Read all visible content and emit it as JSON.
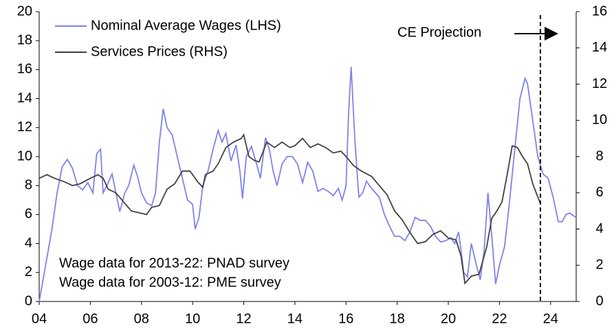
{
  "chart_data": {
    "type": "line",
    "legend": "top-left",
    "annotations": [
      "Wage data for 2013-22: PNAD survey",
      "Wage data for 2003-12: PME survey"
    ],
    "projection": {
      "label": "CE Projection",
      "x": 2023.6
    },
    "xlim": [
      2004,
      2025
    ],
    "xticks": [
      {
        "value": 2004,
        "label": "04"
      },
      {
        "value": 2006,
        "label": "06"
      },
      {
        "value": 2008,
        "label": "08"
      },
      {
        "value": 2010,
        "label": "10"
      },
      {
        "value": 2012,
        "label": "12"
      },
      {
        "value": 2014,
        "label": "14"
      },
      {
        "value": 2016,
        "label": "16"
      },
      {
        "value": 2018,
        "label": "18"
      },
      {
        "value": 2020,
        "label": "20"
      },
      {
        "value": 2022,
        "label": "22"
      },
      {
        "value": 2024,
        "label": "24"
      }
    ],
    "ylim": [
      0,
      20
    ],
    "yticks": [
      0,
      2,
      4,
      6,
      8,
      10,
      12,
      14,
      16,
      18,
      20
    ],
    "y2lim": [
      0,
      16
    ],
    "y2ticks": [
      0,
      2,
      4,
      6,
      8,
      10,
      12,
      14,
      16
    ],
    "series": [
      {
        "name": "Nominal Average Wages (LHS)",
        "color": "#7f82ea",
        "x": [
          2004.0,
          2004.15,
          2004.3,
          2004.5,
          2004.7,
          2004.9,
          2005.1,
          2005.3,
          2005.5,
          2005.7,
          2005.9,
          2006.1,
          2006.25,
          2006.4,
          2006.5,
          2006.7,
          2006.85,
          2007.0,
          2007.15,
          2007.35,
          2007.5,
          2007.7,
          2007.85,
          2008.0,
          2008.2,
          2008.4,
          2008.55,
          2008.7,
          2008.85,
          2009.0,
          2009.2,
          2009.4,
          2009.6,
          2009.8,
          2010.0,
          2010.1,
          2010.25,
          2010.4,
          2010.6,
          2010.8,
          2011.0,
          2011.15,
          2011.3,
          2011.5,
          2011.7,
          2011.85,
          2011.95,
          2012.1,
          2012.3,
          2012.5,
          2012.65,
          2012.85,
          2013.0,
          2013.15,
          2013.3,
          2013.5,
          2013.7,
          2013.9,
          2014.1,
          2014.3,
          2014.5,
          2014.7,
          2014.9,
          2015.1,
          2015.3,
          2015.5,
          2015.7,
          2015.85,
          2016.0,
          2016.1,
          2016.2,
          2016.35,
          2016.5,
          2016.65,
          2016.8,
          2017.0,
          2017.3,
          2017.5,
          2017.7,
          2017.9,
          2018.1,
          2018.3,
          2018.5,
          2018.7,
          2018.9,
          2019.1,
          2019.3,
          2019.5,
          2019.7,
          2019.9,
          2020.1,
          2020.25,
          2020.4,
          2020.5,
          2020.6,
          2020.75,
          2020.9,
          2021.1,
          2021.25,
          2021.4,
          2021.55,
          2021.7,
          2021.85,
          2022.0,
          2022.2,
          2022.4,
          2022.6,
          2022.8,
          2023.0,
          2023.1,
          2023.3,
          2023.5,
          2023.7,
          2023.9,
          2024.1,
          2024.3,
          2024.45,
          2024.6,
          2024.75,
          2024.9,
          2025.0
        ],
        "values": [
          0,
          1.5,
          3,
          5,
          7.5,
          9.3,
          9.8,
          9.2,
          8,
          7.7,
          8.2,
          7.5,
          10.2,
          10.5,
          7.5,
          8.2,
          8.8,
          7.5,
          6.2,
          7.5,
          8,
          9.4,
          8.6,
          7.5,
          6.8,
          6.6,
          7.5,
          11,
          13.3,
          12,
          11.5,
          10,
          8.5,
          7,
          6.7,
          5,
          5.8,
          8,
          9,
          10.5,
          11.8,
          11,
          11.6,
          9.7,
          10.8,
          9,
          7.1,
          10,
          10.7,
          9.5,
          8.5,
          11.3,
          10.5,
          9,
          8,
          9.5,
          10,
          10,
          9.5,
          8.2,
          9.6,
          9,
          7.6,
          7.8,
          7.6,
          7.3,
          7.8,
          7,
          8,
          13,
          16.2,
          11,
          7.2,
          7.5,
          8.3,
          7.8,
          7.2,
          6,
          5.2,
          4.5,
          4.5,
          4.2,
          4.8,
          5.8,
          5.6,
          5.6,
          5.2,
          4.5,
          4.1,
          4.2,
          4.4,
          4,
          4.8,
          3.5,
          2,
          1.7,
          4,
          2.5,
          1.5,
          3.5,
          7.5,
          4.5,
          1.2,
          2.5,
          3.8,
          7,
          10.5,
          14,
          15.4,
          15,
          12.5,
          10,
          8.8,
          8.5,
          7.2,
          5.5,
          5.5,
          6,
          6.1,
          5.9,
          5.8
        ]
      },
      {
        "name": "Services Prices (RHS)",
        "color": "#404040",
        "axis": "y2",
        "x": [
          2004.0,
          2004.3,
          2004.6,
          2005.0,
          2005.3,
          2005.6,
          2006.0,
          2006.3,
          2006.5,
          2006.7,
          2007.0,
          2007.3,
          2007.6,
          2007.9,
          2008.2,
          2008.4,
          2008.7,
          2009.0,
          2009.3,
          2009.6,
          2009.9,
          2010.2,
          2010.4,
          2010.5,
          2010.8,
          2011.0,
          2011.3,
          2011.6,
          2011.9,
          2012.0,
          2012.2,
          2012.4,
          2012.6,
          2012.9,
          2013.2,
          2013.5,
          2013.8,
          2014.0,
          2014.3,
          2014.6,
          2014.9,
          2015.2,
          2015.5,
          2015.8,
          2016.0,
          2016.3,
          2016.6,
          2017.0,
          2017.3,
          2017.6,
          2017.9,
          2018.2,
          2018.5,
          2018.8,
          2019.1,
          2019.4,
          2019.7,
          2020.0,
          2020.3,
          2020.5,
          2020.65,
          2020.9,
          2021.2,
          2021.5,
          2021.7,
          2021.9,
          2022.1,
          2022.3,
          2022.5,
          2022.7,
          2022.9,
          2023.1,
          2023.3,
          2023.6
        ],
        "values": [
          6.8,
          7.0,
          6.8,
          6.6,
          6.4,
          6.5,
          6.8,
          7.0,
          6.8,
          6.2,
          6.0,
          5.5,
          5.0,
          4.9,
          4.8,
          5.2,
          5.3,
          6.2,
          6.5,
          7.2,
          7.2,
          6.6,
          6.3,
          7.0,
          7.2,
          7.6,
          8.5,
          8.8,
          9.0,
          9.2,
          8.0,
          7.8,
          7.7,
          8.8,
          8.5,
          8.8,
          8.5,
          8.6,
          9.0,
          8.5,
          8.7,
          8.5,
          8.2,
          8.3,
          8.0,
          7.5,
          7.2,
          6.9,
          6.4,
          5.9,
          5.0,
          4.5,
          3.8,
          3.2,
          3.3,
          3.7,
          3.9,
          3.5,
          3.4,
          2.5,
          1.0,
          1.4,
          1.5,
          3.0,
          4.6,
          5.0,
          5.5,
          7.0,
          8.6,
          8.5,
          8.0,
          7.6,
          6.5,
          5.4
        ]
      }
    ]
  }
}
